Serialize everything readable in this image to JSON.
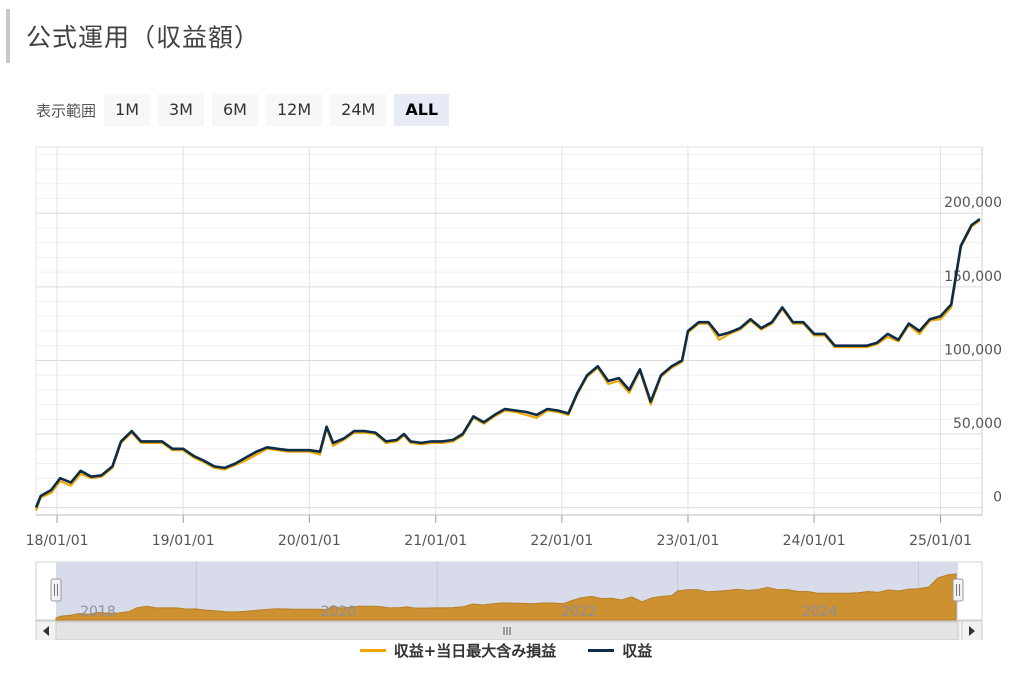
{
  "page": {
    "title": "公式運用（収益額）"
  },
  "range_selector": {
    "label": "表示範囲",
    "buttons": [
      {
        "label": "1M",
        "active": false
      },
      {
        "label": "3M",
        "active": false
      },
      {
        "label": "6M",
        "active": false
      },
      {
        "label": "12M",
        "active": false
      },
      {
        "label": "24M",
        "active": false
      },
      {
        "label": "ALL",
        "active": true
      }
    ]
  },
  "legend": [
    {
      "label": "収益+当日最大含み損益",
      "color": "#f0a500"
    },
    {
      "label": "収益",
      "color": "#0b2c4a"
    }
  ],
  "chart_data": {
    "type": "line",
    "title": "",
    "xlabel": "",
    "ylabel": "",
    "x_tick_labels": [
      "18/01/01",
      "19/01/01",
      "20/01/01",
      "21/01/01",
      "22/01/01",
      "23/01/01",
      "24/01/01",
      "25/01/01"
    ],
    "y_tick_labels": [
      "0",
      "50,000",
      "100,000",
      "150,000",
      "200,000"
    ],
    "y_ticks": [
      0,
      50000,
      100000,
      150000,
      200000
    ],
    "ylim": [
      -5000,
      245000
    ],
    "xlim": [
      "2017-11-01",
      "2025-05-01"
    ],
    "grid": true,
    "legend_position": "bottom",
    "series": [
      {
        "name": "収益",
        "color": "#0b2c4a",
        "points": [
          [
            "2017-11-01",
            0
          ],
          [
            "2017-11-15",
            8000
          ],
          [
            "2017-12-15",
            12000
          ],
          [
            "2018-01-10",
            20000
          ],
          [
            "2018-02-10",
            17000
          ],
          [
            "2018-03-10",
            25000
          ],
          [
            "2018-04-10",
            21000
          ],
          [
            "2018-05-10",
            22000
          ],
          [
            "2018-06-10",
            28000
          ],
          [
            "2018-07-05",
            45000
          ],
          [
            "2018-08-05",
            52000
          ],
          [
            "2018-09-01",
            45000
          ],
          [
            "2018-10-01",
            45000
          ],
          [
            "2018-11-01",
            45000
          ],
          [
            "2018-12-01",
            40000
          ],
          [
            "2019-01-01",
            40000
          ],
          [
            "2019-02-01",
            35000
          ],
          [
            "2019-03-01",
            32000
          ],
          [
            "2019-04-01",
            28000
          ],
          [
            "2019-05-01",
            27000
          ],
          [
            "2019-06-01",
            30000
          ],
          [
            "2019-07-01",
            34000
          ],
          [
            "2019-08-01",
            38000
          ],
          [
            "2019-09-01",
            41000
          ],
          [
            "2019-10-01",
            40000
          ],
          [
            "2019-11-01",
            39000
          ],
          [
            "2019-12-01",
            39000
          ],
          [
            "2020-01-01",
            39000
          ],
          [
            "2020-02-01",
            38000
          ],
          [
            "2020-02-20",
            55000
          ],
          [
            "2020-03-10",
            44000
          ],
          [
            "2020-04-10",
            47000
          ],
          [
            "2020-05-10",
            52000
          ],
          [
            "2020-06-10",
            52000
          ],
          [
            "2020-07-10",
            51000
          ],
          [
            "2020-08-10",
            45000
          ],
          [
            "2020-09-10",
            46000
          ],
          [
            "2020-10-01",
            50000
          ],
          [
            "2020-10-20",
            45000
          ],
          [
            "2020-11-20",
            44000
          ],
          [
            "2020-12-20",
            45000
          ],
          [
            "2021-01-20",
            45000
          ],
          [
            "2021-02-20",
            46000
          ],
          [
            "2021-03-20",
            50000
          ],
          [
            "2021-04-20",
            62000
          ],
          [
            "2021-05-20",
            58000
          ],
          [
            "2021-06-20",
            63000
          ],
          [
            "2021-07-20",
            67000
          ],
          [
            "2021-08-20",
            66000
          ],
          [
            "2021-09-20",
            65000
          ],
          [
            "2021-10-20",
            63000
          ],
          [
            "2021-11-20",
            67000
          ],
          [
            "2021-12-20",
            66000
          ],
          [
            "2022-01-20",
            64000
          ],
          [
            "2022-02-15",
            78000
          ],
          [
            "2022-03-15",
            90000
          ],
          [
            "2022-04-15",
            96000
          ],
          [
            "2022-05-15",
            86000
          ],
          [
            "2022-06-15",
            88000
          ],
          [
            "2022-07-15",
            80000
          ],
          [
            "2022-08-15",
            94000
          ],
          [
            "2022-09-15",
            72000
          ],
          [
            "2022-10-15",
            90000
          ],
          [
            "2022-11-15",
            96000
          ],
          [
            "2022-12-15",
            100000
          ],
          [
            "2023-01-01",
            120000
          ],
          [
            "2023-02-01",
            126000
          ],
          [
            "2023-03-01",
            126000
          ],
          [
            "2023-04-01",
            117000
          ],
          [
            "2023-05-01",
            119000
          ],
          [
            "2023-06-01",
            122000
          ],
          [
            "2023-07-01",
            128000
          ],
          [
            "2023-08-01",
            122000
          ],
          [
            "2023-09-01",
            126000
          ],
          [
            "2023-10-01",
            136000
          ],
          [
            "2023-11-01",
            126000
          ],
          [
            "2023-12-01",
            126000
          ],
          [
            "2024-01-01",
            118000
          ],
          [
            "2024-02-01",
            118000
          ],
          [
            "2024-03-01",
            110000
          ],
          [
            "2024-04-01",
            110000
          ],
          [
            "2024-05-01",
            110000
          ],
          [
            "2024-06-01",
            110000
          ],
          [
            "2024-07-01",
            112000
          ],
          [
            "2024-08-01",
            118000
          ],
          [
            "2024-09-01",
            114000
          ],
          [
            "2024-10-01",
            125000
          ],
          [
            "2024-11-01",
            120000
          ],
          [
            "2024-12-01",
            128000
          ],
          [
            "2025-01-01",
            130000
          ],
          [
            "2025-02-01",
            138000
          ],
          [
            "2025-03-01",
            178000
          ],
          [
            "2025-04-01",
            192000
          ],
          [
            "2025-04-25",
            196000
          ]
        ]
      },
      {
        "name": "収益+当日最大含み損益",
        "color": "#f0a500",
        "points": [
          [
            "2017-11-01",
            -2000
          ],
          [
            "2017-11-15",
            7000
          ],
          [
            "2017-12-15",
            10000
          ],
          [
            "2018-01-10",
            18000
          ],
          [
            "2018-02-10",
            15000
          ],
          [
            "2018-03-10",
            23000
          ],
          [
            "2018-04-10",
            20000
          ],
          [
            "2018-05-10",
            21000
          ],
          [
            "2018-06-10",
            27000
          ],
          [
            "2018-07-05",
            44000
          ],
          [
            "2018-08-05",
            51000
          ],
          [
            "2018-09-01",
            44000
          ],
          [
            "2018-10-01",
            44000
          ],
          [
            "2018-11-01",
            44000
          ],
          [
            "2018-12-01",
            39000
          ],
          [
            "2019-01-01",
            39000
          ],
          [
            "2019-02-01",
            34000
          ],
          [
            "2019-03-01",
            31000
          ],
          [
            "2019-04-01",
            27000
          ],
          [
            "2019-05-01",
            26000
          ],
          [
            "2019-06-01",
            29000
          ],
          [
            "2019-07-01",
            32000
          ],
          [
            "2019-08-01",
            36000
          ],
          [
            "2019-09-01",
            40000
          ],
          [
            "2019-10-01",
            39000
          ],
          [
            "2019-11-01",
            38000
          ],
          [
            "2019-12-01",
            38000
          ],
          [
            "2020-01-01",
            38000
          ],
          [
            "2020-02-01",
            36000
          ],
          [
            "2020-02-20",
            54000
          ],
          [
            "2020-03-10",
            42000
          ],
          [
            "2020-04-10",
            46000
          ],
          [
            "2020-05-10",
            51000
          ],
          [
            "2020-06-10",
            51000
          ],
          [
            "2020-07-10",
            50000
          ],
          [
            "2020-08-10",
            44000
          ],
          [
            "2020-09-10",
            45000
          ],
          [
            "2020-10-01",
            49000
          ],
          [
            "2020-10-20",
            44000
          ],
          [
            "2020-11-20",
            43000
          ],
          [
            "2020-12-20",
            44000
          ],
          [
            "2021-01-20",
            44000
          ],
          [
            "2021-02-20",
            45000
          ],
          [
            "2021-03-20",
            49000
          ],
          [
            "2021-04-20",
            61000
          ],
          [
            "2021-05-20",
            57000
          ],
          [
            "2021-06-20",
            62000
          ],
          [
            "2021-07-20",
            66000
          ],
          [
            "2021-08-20",
            65000
          ],
          [
            "2021-09-20",
            63000
          ],
          [
            "2021-10-20",
            61000
          ],
          [
            "2021-11-20",
            66000
          ],
          [
            "2021-12-20",
            65000
          ],
          [
            "2022-01-20",
            63000
          ],
          [
            "2022-02-15",
            77000
          ],
          [
            "2022-03-15",
            89000
          ],
          [
            "2022-04-15",
            95000
          ],
          [
            "2022-05-15",
            84000
          ],
          [
            "2022-06-15",
            86000
          ],
          [
            "2022-07-15",
            78000
          ],
          [
            "2022-08-15",
            93000
          ],
          [
            "2022-09-15",
            70000
          ],
          [
            "2022-10-15",
            89000
          ],
          [
            "2022-11-15",
            95000
          ],
          [
            "2022-12-15",
            99000
          ],
          [
            "2023-01-01",
            119000
          ],
          [
            "2023-02-01",
            125000
          ],
          [
            "2023-03-01",
            125000
          ],
          [
            "2023-04-01",
            114000
          ],
          [
            "2023-05-01",
            118000
          ],
          [
            "2023-06-01",
            121000
          ],
          [
            "2023-07-01",
            127000
          ],
          [
            "2023-08-01",
            121000
          ],
          [
            "2023-09-01",
            125000
          ],
          [
            "2023-10-01",
            135000
          ],
          [
            "2023-11-01",
            125000
          ],
          [
            "2023-12-01",
            125000
          ],
          [
            "2024-01-01",
            117000
          ],
          [
            "2024-02-01",
            117000
          ],
          [
            "2024-03-01",
            109000
          ],
          [
            "2024-04-01",
            109000
          ],
          [
            "2024-05-01",
            109000
          ],
          [
            "2024-06-01",
            109000
          ],
          [
            "2024-07-01",
            111000
          ],
          [
            "2024-08-01",
            116000
          ],
          [
            "2024-09-01",
            113000
          ],
          [
            "2024-10-01",
            124000
          ],
          [
            "2024-11-01",
            118000
          ],
          [
            "2024-12-01",
            127000
          ],
          [
            "2025-01-01",
            128000
          ],
          [
            "2025-02-01",
            136000
          ],
          [
            "2025-03-01",
            177000
          ],
          [
            "2025-04-01",
            191000
          ],
          [
            "2025-04-25",
            195000
          ]
        ]
      }
    ]
  },
  "navigator": {
    "labels": [
      "2018",
      "2020",
      "2022",
      "2024"
    ],
    "fill_color": "#cd9132",
    "selection_color": "#d7dbea",
    "handle_glyph": "Ⅱ",
    "scroll_glyph": "Ⅲ",
    "left_arrow_icon": "triangle-left",
    "right_arrow_icon": "triangle-right"
  }
}
